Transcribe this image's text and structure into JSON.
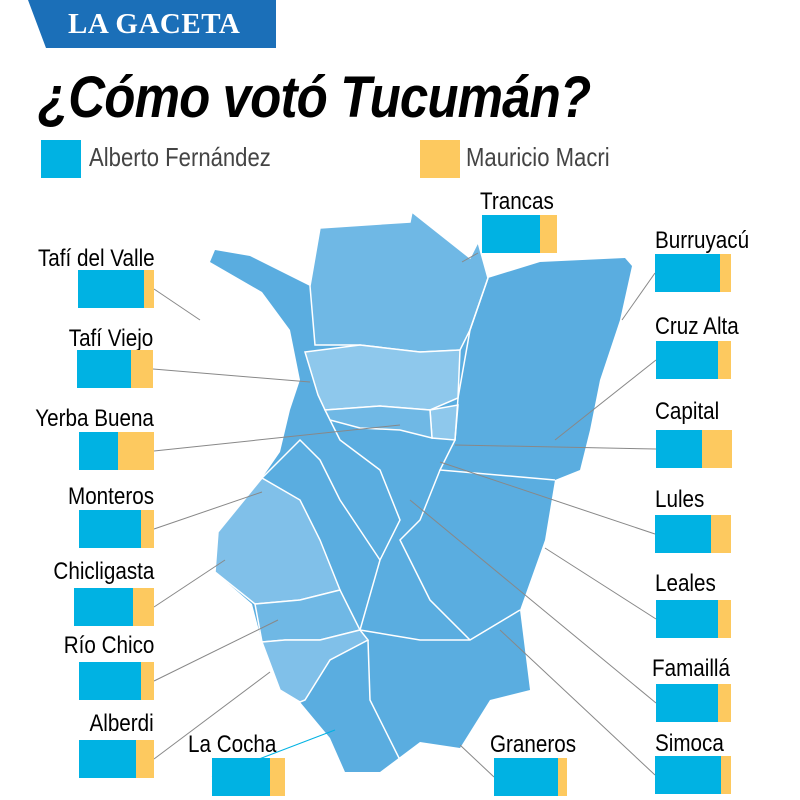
{
  "brand": "LA GACETA",
  "title": "¿Cómo votó Tucumán?",
  "colors": {
    "fernandez": "#00b2e3",
    "macri": "#fdc95f",
    "map_dark": "#5aade0",
    "map_mid": "#6fb8e5",
    "map_light": "#8ec8ec"
  },
  "chart_data": {
    "type": "bar",
    "stacked": true,
    "orientation": "horizontal",
    "title": "¿Cómo votó Tucumán?",
    "legend": [
      "Alberto Fernández",
      "Mauricio Macri"
    ],
    "legend_position": "top",
    "unit": "share of vote (%)",
    "categories": [
      "Tafí del Valle",
      "Tafí Viejo",
      "Yerba Buena",
      "Monteros",
      "Chicligasta",
      "Río Chico",
      "Alberdi",
      "La Cocha",
      "Graneros",
      "Trancas",
      "Burruyacú",
      "Cruz Alta",
      "Capital",
      "Lules",
      "Leales",
      "Famaillá",
      "Simoca"
    ],
    "series": [
      {
        "name": "Alberto Fernández",
        "values": [
          87,
          71,
          52,
          83,
          74,
          83,
          76,
          79,
          88,
          77,
          86,
          83,
          60,
          74,
          83,
          83,
          87
        ]
      },
      {
        "name": "Mauricio Macri",
        "values": [
          13,
          29,
          48,
          17,
          26,
          17,
          24,
          21,
          12,
          23,
          14,
          17,
          40,
          26,
          17,
          17,
          13
        ]
      }
    ]
  }
}
